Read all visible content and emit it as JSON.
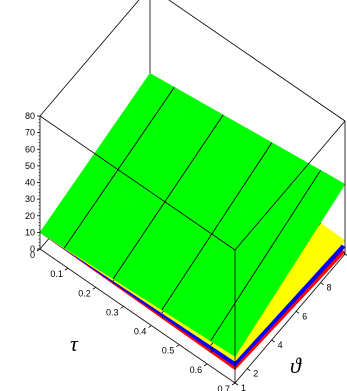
{
  "chart_data": {
    "type": "surface3d",
    "x_axis": {
      "title": "τ",
      "ticks": [
        "0",
        "0.1",
        "0.2",
        "0.3",
        "0.4",
        "0.5",
        "0.6",
        "0.7"
      ],
      "range": [
        0,
        0.7
      ]
    },
    "y_axis": {
      "title": "ϑ",
      "ticks": [
        "1",
        "2",
        "4",
        "6",
        "8",
        "10"
      ],
      "range": [
        1,
        10
      ]
    },
    "z_axis": {
      "ticks": [
        "0",
        "10",
        "20",
        "30",
        "40",
        "50",
        "60",
        "70",
        "80"
      ],
      "range": [
        0,
        80
      ]
    },
    "box": "full-bounding-box",
    "surfaces": [
      {
        "color": "#ff0000",
        "corner_values": {
          "t0_v1": 10,
          "t0_v10": 10,
          "t07_v1": 8,
          "t07_v10": 1
        }
      },
      {
        "color": "#0000ff",
        "corner_values": {
          "t0_v1": 10,
          "t0_v10": 11,
          "t07_v1": 10,
          "t07_v10": 4
        }
      },
      {
        "color": "#ffff00",
        "corner_values": {
          "t0_v1": 10,
          "t0_v10": 12,
          "t07_v1": 13,
          "t07_v10": 8
        }
      },
      {
        "color": "#00ff00",
        "corner_values": {
          "t0_v1": 10,
          "t0_v10": 28,
          "t07_v1": 16,
          "t07_v10": 42
        }
      }
    ],
    "contour_color": "#000000"
  }
}
